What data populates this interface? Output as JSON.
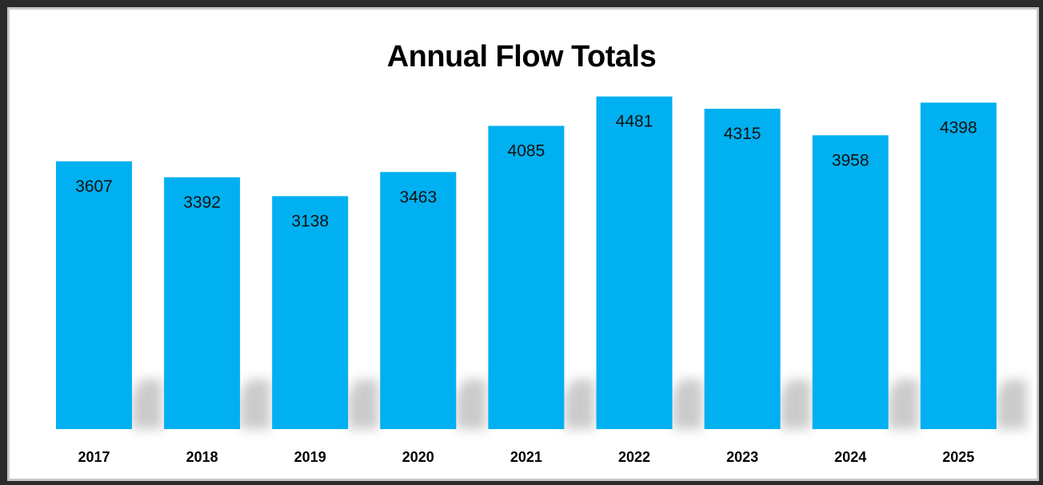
{
  "chart_data": {
    "type": "bar",
    "title": "Annual Flow Totals",
    "categories": [
      "2017",
      "2018",
      "2019",
      "2020",
      "2021",
      "2022",
      "2023",
      "2024",
      "2025"
    ],
    "values": [
      3607,
      3392,
      3138,
      3463,
      4085,
      4481,
      4315,
      3958,
      4398
    ],
    "xlabel": "",
    "ylabel": "",
    "ylim": [
      0,
      5350
    ],
    "grid": false,
    "legend": "none",
    "data_labels": "inside-top",
    "bar_color": "#00b0f0"
  }
}
